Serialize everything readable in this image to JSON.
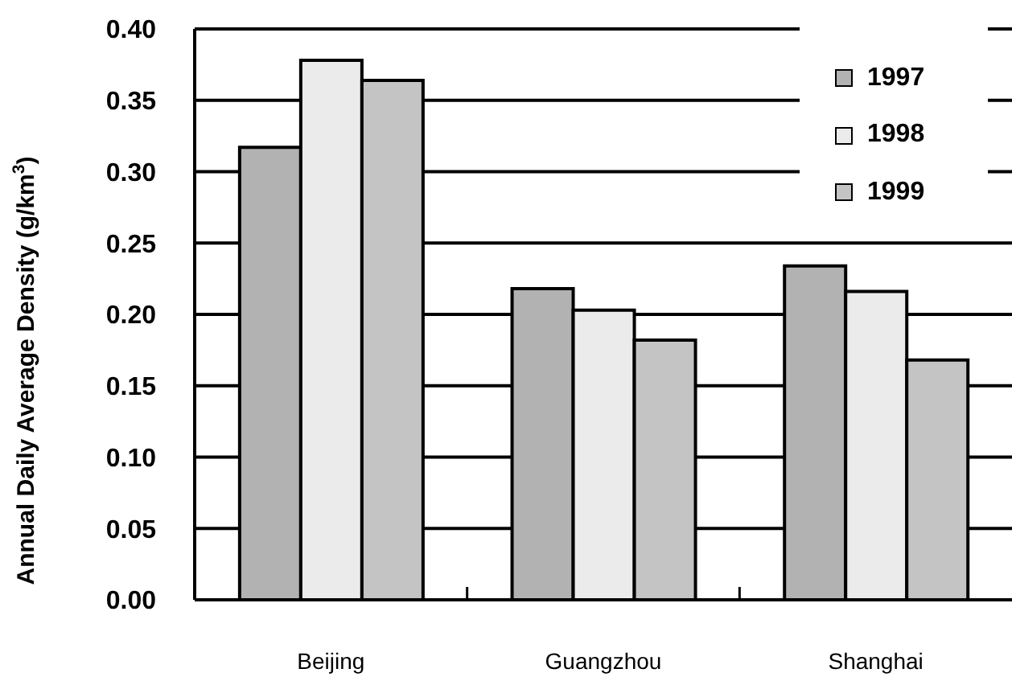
{
  "chart_data": {
    "type": "bar",
    "ylabel": "Annual Daily Average Density (g/km$^{3}$)",
    "categories": [
      "Beijing",
      "Guangzhou",
      "Shanghai"
    ],
    "series": [
      {
        "name": "1997",
        "color": "#b2b2b2",
        "values": [
          0.317,
          0.218,
          0.234
        ]
      },
      {
        "name": "1998",
        "color": "#ebebeb",
        "values": [
          0.378,
          0.203,
          0.216
        ]
      },
      {
        "name": "1999",
        "color": "#c4c4c4",
        "values": [
          0.364,
          0.182,
          0.168
        ]
      }
    ],
    "ylim": [
      0,
      0.4
    ],
    "yticks": [
      {
        "value": 0,
        "label": "0.00"
      },
      0.05,
      {
        "value": 0.1,
        "label": "0.10"
      },
      0.15,
      {
        "value": 0.2,
        "label": "0.20"
      },
      0.25,
      {
        "value": 0.3,
        "label": "0.30"
      },
      0.35,
      {
        "value": 0.4,
        "label": "0.40"
      }
    ],
    "grid": "y",
    "legend": "top right"
  }
}
